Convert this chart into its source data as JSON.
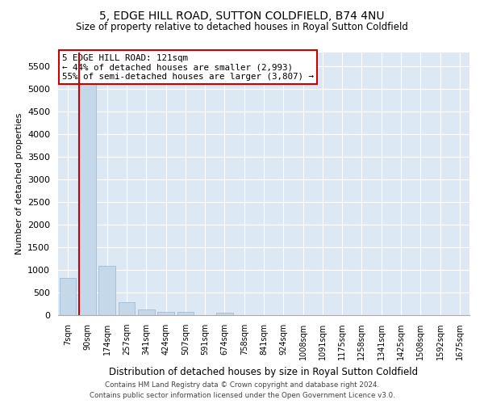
{
  "title": "5, EDGE HILL ROAD, SUTTON COLDFIELD, B74 4NU",
  "subtitle": "Size of property relative to detached houses in Royal Sutton Coldfield",
  "xlabel": "Distribution of detached houses by size in Royal Sutton Coldfield",
  "ylabel": "Number of detached properties",
  "bar_color": "#c5d8ea",
  "bar_edge_color": "#a0bcd4",
  "vline_color": "#cc0000",
  "vline_x_index": 1,
  "annotation_text": "5 EDGE HILL ROAD: 121sqm\n← 44% of detached houses are smaller (2,993)\n55% of semi-detached houses are larger (3,807) →",
  "annotation_box_color": "#ffffff",
  "annotation_box_edge": "#cc0000",
  "categories": [
    "7sqm",
    "90sqm",
    "174sqm",
    "257sqm",
    "341sqm",
    "424sqm",
    "507sqm",
    "591sqm",
    "674sqm",
    "758sqm",
    "841sqm",
    "924sqm",
    "1008sqm",
    "1091sqm",
    "1175sqm",
    "1258sqm",
    "1341sqm",
    "1425sqm",
    "1508sqm",
    "1592sqm",
    "1675sqm"
  ],
  "values": [
    820,
    5200,
    1080,
    290,
    120,
    75,
    65,
    0,
    50,
    0,
    0,
    0,
    0,
    0,
    0,
    0,
    0,
    0,
    0,
    0,
    0
  ],
  "ylim": [
    0,
    5800
  ],
  "yticks": [
    0,
    500,
    1000,
    1500,
    2000,
    2500,
    3000,
    3500,
    4000,
    4500,
    5000,
    5500
  ],
  "footer1": "Contains HM Land Registry data © Crown copyright and database right 2024.",
  "footer2": "Contains public sector information licensed under the Open Government Licence v3.0.",
  "plot_bg_color": "#dce9f5",
  "fig_bg_color": "#ffffff"
}
